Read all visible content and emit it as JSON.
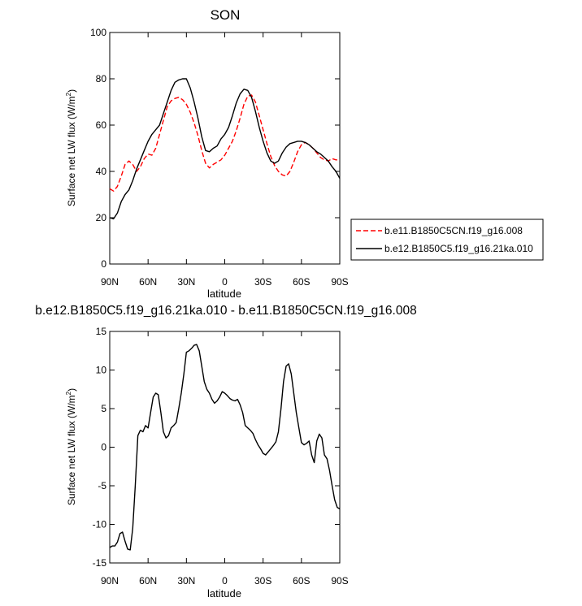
{
  "chart_data": [
    {
      "type": "line",
      "title": "SON",
      "xlabel": "latitude",
      "ylabel": "Surface net LW flux (W/m2)",
      "ylabel_main": "Surface net LW flux (W/m",
      "ylabel_sup": "2",
      "ylabel_close": ")",
      "xlim": [
        90,
        -90
      ],
      "ylim": [
        0,
        100
      ],
      "yticks": [
        0,
        20,
        40,
        60,
        80,
        100
      ],
      "ytick_labels": [
        "0",
        "20",
        "40",
        "60",
        "80",
        "100"
      ],
      "xticks": [
        90,
        60,
        30,
        0,
        -30,
        -60,
        -90
      ],
      "xtick_labels": [
        "90N",
        "60N",
        "30N",
        "0",
        "30S",
        "60S",
        "90S"
      ],
      "legend_position": "right-outside",
      "series": [
        {
          "name": "b.e11.B1850C5CN.f19_g16.008",
          "color": "#ff0000",
          "dash": "dashed",
          "x": [
            90,
            87,
            84,
            81,
            78,
            75,
            72,
            69,
            66,
            63,
            60,
            57,
            54,
            51,
            48,
            45,
            42,
            39,
            36,
            33,
            30,
            27,
            24,
            21,
            18,
            15,
            12,
            9,
            6,
            3,
            0,
            -3,
            -6,
            -9,
            -12,
            -15,
            -18,
            -21,
            -24,
            -27,
            -30,
            -33,
            -36,
            -39,
            -42,
            -45,
            -48,
            -51,
            -54,
            -57,
            -60,
            -63,
            -66,
            -69,
            -72,
            -75,
            -78,
            -81,
            -84,
            -87,
            -90
          ],
          "y": [
            32.5,
            31.5,
            33.5,
            38,
            43,
            44.5,
            43,
            40,
            42,
            45.5,
            47.5,
            47,
            50,
            56,
            62,
            68,
            70.5,
            71.5,
            72,
            71,
            69,
            65.5,
            61,
            55.5,
            49,
            43.5,
            41.5,
            43,
            44,
            45,
            47,
            50,
            53,
            57.5,
            63,
            69,
            72.5,
            73,
            70,
            64,
            58,
            52,
            46.5,
            42.5,
            40,
            38.5,
            38,
            40,
            44,
            48.5,
            51.5,
            52.5,
            51.5,
            50,
            48,
            46,
            45,
            44.5,
            45.5,
            45,
            45
          ]
        },
        {
          "name": "b.e12.B1850C5.f19_g16.21ka.010",
          "color": "#000000",
          "dash": "solid",
          "x": [
            90,
            87,
            84,
            81,
            78,
            75,
            72,
            69,
            66,
            63,
            60,
            57,
            54,
            51,
            48,
            45,
            42,
            39,
            36,
            33,
            30,
            27,
            24,
            21,
            18,
            15,
            12,
            9,
            6,
            3,
            0,
            -3,
            -6,
            -9,
            -12,
            -15,
            -18,
            -21,
            -24,
            -27,
            -30,
            -33,
            -36,
            -39,
            -42,
            -45,
            -48,
            -51,
            -54,
            -57,
            -60,
            -63,
            -66,
            -69,
            -72,
            -75,
            -78,
            -81,
            -84,
            -87,
            -90
          ],
          "y": [
            20,
            19.5,
            22,
            27,
            30,
            32,
            36,
            41,
            45,
            49,
            53,
            56,
            58,
            60,
            65,
            70,
            75,
            78.5,
            79.5,
            80,
            80,
            76,
            70,
            63,
            55,
            49,
            48.5,
            50,
            51,
            54,
            56,
            59,
            64,
            69.5,
            73.5,
            75.5,
            75,
            72,
            66,
            59,
            53,
            48,
            44.5,
            43.5,
            44.5,
            48,
            50.5,
            52,
            52.5,
            53,
            53,
            52.5,
            51.5,
            50,
            48.5,
            47.5,
            46,
            44.5,
            42,
            40,
            37
          ]
        }
      ]
    },
    {
      "type": "line",
      "title": "b.e12.B1850C5.f19_g16.21ka.010 - b.e11.B1850C5CN.f19_g16.008",
      "xlabel": "latitude",
      "ylabel": "Surface net LW flux (W/m2)",
      "ylabel_main": "Surface net LW flux (W/m",
      "ylabel_sup": "2",
      "ylabel_close": ")",
      "xlim": [
        90,
        -90
      ],
      "ylim": [
        -15,
        15
      ],
      "yticks": [
        -15,
        -10,
        -5,
        0,
        5,
        10,
        15
      ],
      "ytick_labels": [
        "-15",
        "-10",
        "-5",
        "0",
        "5",
        "10",
        "15"
      ],
      "xticks": [
        90,
        60,
        30,
        0,
        -30,
        -60,
        -90
      ],
      "xtick_labels": [
        "90N",
        "60N",
        "30N",
        "0",
        "30S",
        "60S",
        "90S"
      ],
      "series": [
        {
          "color": "#000000",
          "dash": "solid",
          "x": [
            90,
            88,
            86,
            84,
            82,
            80,
            78,
            76,
            74,
            72,
            70,
            68,
            66,
            64,
            62,
            60,
            58,
            56,
            54,
            52,
            50,
            48,
            46,
            44,
            42,
            40,
            38,
            36,
            34,
            32,
            30,
            28,
            26,
            24,
            22,
            20,
            18,
            16,
            14,
            12,
            10,
            8,
            6,
            4,
            2,
            0,
            -2,
            -4,
            -6,
            -8,
            -10,
            -12,
            -14,
            -16,
            -18,
            -20,
            -22,
            -24,
            -26,
            -28,
            -30,
            -32,
            -34,
            -36,
            -38,
            -40,
            -42,
            -44,
            -46,
            -48,
            -50,
            -52,
            -54,
            -56,
            -58,
            -60,
            -62,
            -64,
            -66,
            -68,
            -70,
            -72,
            -74,
            -76,
            -78,
            -80,
            -82,
            -84,
            -86,
            -88,
            -90
          ],
          "y": [
            -13,
            -12.8,
            -12.8,
            -12.3,
            -11.2,
            -11,
            -12.2,
            -13.2,
            -13.3,
            -10.5,
            -5,
            1.5,
            2.2,
            2.0,
            2.8,
            2.5,
            4.5,
            6.5,
            7.0,
            6.8,
            4.5,
            2.0,
            1.2,
            1.5,
            2.5,
            2.8,
            3.2,
            5.0,
            7.0,
            9.5,
            12.3,
            12.5,
            12.8,
            13.2,
            13.3,
            12.5,
            10.5,
            8.5,
            7.5,
            7.0,
            6.2,
            5.7,
            6.0,
            6.5,
            7.2,
            7.0,
            6.7,
            6.3,
            6.1,
            6.0,
            6.2,
            5.5,
            4.5,
            2.8,
            2.5,
            2.2,
            1.8,
            1.0,
            0.3,
            -0.2,
            -0.8,
            -1.0,
            -0.6,
            -0.2,
            0.2,
            0.7,
            2.0,
            5.0,
            8.5,
            10.5,
            10.8,
            9.5,
            7.0,
            4.5,
            2.5,
            0.6,
            0.3,
            0.5,
            0.8,
            -1.0,
            -2.0,
            0.8,
            1.7,
            1.2,
            -1.0,
            -1.5,
            -3.0,
            -5.0,
            -6.8,
            -7.8,
            -8.0
          ]
        }
      ]
    }
  ],
  "legend": {
    "items": [
      {
        "label": "b.e11.B1850C5CN.f19_g16.008",
        "color": "#ff0000",
        "dash": "dashed"
      },
      {
        "label": "b.e12.B1850C5.f19_g16.21ka.010",
        "color": "#000000",
        "dash": "solid"
      }
    ]
  }
}
